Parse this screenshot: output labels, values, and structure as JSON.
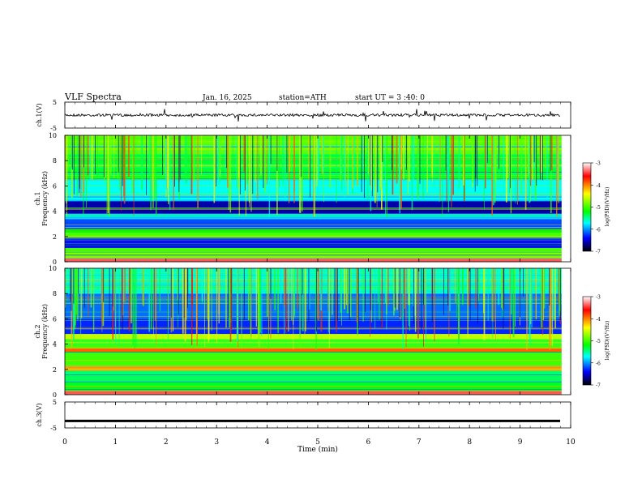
{
  "header": {
    "title": "VLF  Spectra",
    "date": "Jan. 16, 2025",
    "station": "station=ATH",
    "start": "start  UT  =    3  :40: 0"
  },
  "panels": {
    "ch1_wave": {
      "ylabel": "ch.1(V)",
      "ticks": [
        "5",
        "-5"
      ]
    },
    "ch1_spec": {
      "ylabel": "ch.1\nFrequency (kHz)",
      "ticks": [
        "0",
        "2",
        "4",
        "6",
        "8",
        "10"
      ]
    },
    "ch2_spec": {
      "ylabel": "ch.2\nFrequency (kHz)",
      "ticks": [
        "0",
        "2",
        "4",
        "6",
        "8",
        "10"
      ]
    },
    "ch3_wave": {
      "ylabel": "ch.3(V)",
      "ticks": [
        "5",
        "-5"
      ]
    }
  },
  "xaxis": {
    "label": "Time  (min)",
    "ticks": [
      "0",
      "1",
      "2",
      "3",
      "4",
      "5",
      "6",
      "7",
      "8",
      "9",
      "10"
    ]
  },
  "colorbar": {
    "label": "log(PSD)(V²/Hz)",
    "ticks": [
      "-3",
      "-4",
      "-5",
      "-6",
      "-7"
    ],
    "colors": [
      "#ffffff",
      "#ff0000",
      "#ffff00",
      "#00ff00",
      "#00ffff",
      "#0000ff",
      "#000000"
    ]
  },
  "chart_data": [
    {
      "type": "line",
      "title": "VLF  Spectra",
      "ylabel": "ch.1(V)",
      "xlabel": "Time  (min)",
      "xlim": [
        0,
        10
      ],
      "ylim": [
        -5,
        5
      ],
      "series": [
        {
          "x": [
            0,
            9.8
          ],
          "values": [
            0,
            0
          ]
        }
      ]
    },
    {
      "type": "heatmap",
      "ylabel": "ch.1 Frequency (kHz)",
      "xlim": [
        0,
        10
      ],
      "ylim": [
        0,
        10
      ],
      "colorscale": "log(PSD)(V²/Hz)",
      "zlim": [
        -7,
        -3
      ],
      "bands": [
        {
          "freq_khz": [
            0.0,
            0.3
          ],
          "level": -3.4
        },
        {
          "freq_khz": [
            0.3,
            0.8
          ],
          "level": -4.8
        },
        {
          "freq_khz": [
            0.8,
            1.1
          ],
          "level": -5.0
        },
        {
          "freq_khz": [
            1.1,
            1.9
          ],
          "level": -6.4
        },
        {
          "freq_khz": [
            1.9,
            2.3
          ],
          "level": -5.0
        },
        {
          "freq_khz": [
            2.3,
            2.6
          ],
          "level": -5.2
        },
        {
          "freq_khz": [
            2.6,
            3.4
          ],
          "level": -6.2
        },
        {
          "freq_khz": [
            3.4,
            3.8
          ],
          "level": -5.8
        },
        {
          "freq_khz": [
            3.8,
            4.8
          ],
          "level": -6.6
        },
        {
          "freq_khz": [
            4.8,
            6.5
          ],
          "level": -5.7
        },
        {
          "freq_khz": [
            6.5,
            8.5
          ],
          "level": -5.3
        },
        {
          "freq_khz": [
            8.5,
            10.0
          ],
          "level": -4.9
        }
      ]
    },
    {
      "type": "heatmap",
      "ylabel": "ch.2 Frequency (kHz)",
      "xlim": [
        0,
        10
      ],
      "ylim": [
        0,
        10
      ],
      "colorscale": "log(PSD)(V²/Hz)",
      "zlim": [
        -7,
        -3
      ],
      "bands": [
        {
          "freq_khz": [
            0.0,
            0.3
          ],
          "level": -3.4
        },
        {
          "freq_khz": [
            0.3,
            1.0
          ],
          "level": -5.2
        },
        {
          "freq_khz": [
            1.0,
            1.9
          ],
          "level": -5.4
        },
        {
          "freq_khz": [
            1.9,
            2.3
          ],
          "level": -4.1
        },
        {
          "freq_khz": [
            2.3,
            3.4
          ],
          "level": -5.0
        },
        {
          "freq_khz": [
            3.4,
            3.7
          ],
          "level": -3.9
        },
        {
          "freq_khz": [
            3.7,
            4.4
          ],
          "level": -5.0
        },
        {
          "freq_khz": [
            4.4,
            4.8
          ],
          "level": -4.6
        },
        {
          "freq_khz": [
            4.8,
            6.0
          ],
          "level": -6.3
        },
        {
          "freq_khz": [
            6.0,
            8.0
          ],
          "level": -6.1
        },
        {
          "freq_khz": [
            8.0,
            10.0
          ],
          "level": -5.6
        }
      ]
    },
    {
      "type": "line",
      "ylabel": "ch.3(V)",
      "xlim": [
        0,
        10
      ],
      "ylim": [
        -5,
        5
      ],
      "series": [
        {
          "x": [
            0,
            9.8
          ],
          "values": [
            -2.3,
            -2.3
          ]
        }
      ]
    }
  ]
}
